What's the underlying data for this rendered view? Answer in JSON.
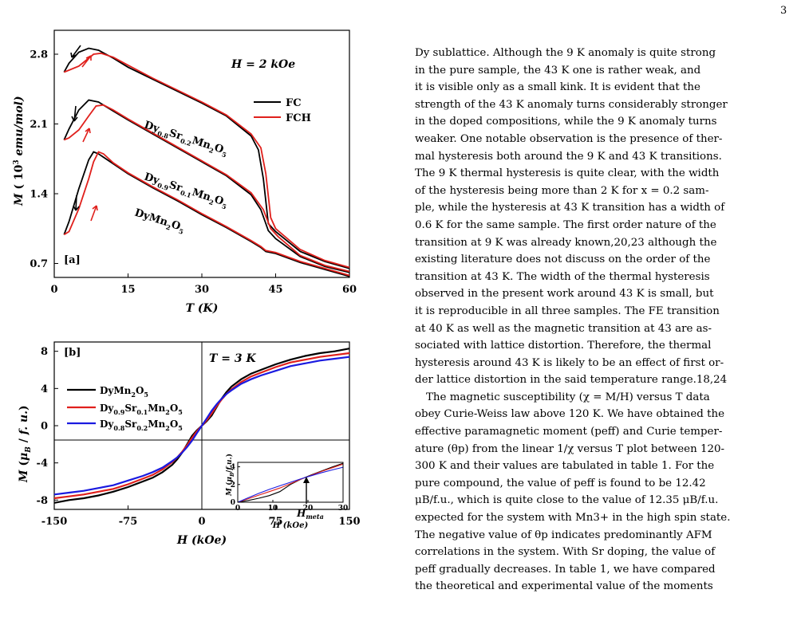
{
  "page": {
    "number": "3"
  },
  "figure": {
    "panel_a": {
      "label": "[a]",
      "field": "H = 2 kOe",
      "xlabel": "T (K)",
      "ylabel": "M ( 10^3 emu/mol)",
      "legend": [
        {
          "name": "FC",
          "color": "#000000"
        },
        {
          "name": "FCH",
          "color": "#e0201c"
        }
      ],
      "sample_labels": [
        "Dy0.8Sr0.2Mn2O5",
        "Dy0.9Sr0.1Mn2O5",
        "DyMn2O5"
      ]
    },
    "panel_b": {
      "label": "[b]",
      "temperature": "T = 3 K",
      "xlabel": "H (kOe)",
      "ylabel": "M (μB / f. u.)",
      "legend": [
        {
          "name": "DyMn2O5",
          "color": "#000000"
        },
        {
          "name": "Dy0.9Sr0.1Mn2O5",
          "color": "#e0201c"
        },
        {
          "name": "Dy0.8Sr0.2Mn2O5",
          "color": "#1a1ae0"
        }
      ],
      "inset": {
        "xlabel": "H (kOe)",
        "ylabel": "M (μB/f.u.)",
        "annotation": "Hmeta"
      }
    }
  },
  "chart_data": [
    {
      "type": "line",
      "title": "",
      "xlabel": "T (K)",
      "ylabel": "M ( 10^3 emu/mol)",
      "xlim": [
        0,
        60
      ],
      "ylim": [
        0.56,
        3.04
      ],
      "xticks": [
        0,
        15,
        30,
        45,
        60
      ],
      "yticks": [
        0.7,
        1.4,
        2.1,
        2.8
      ],
      "series": [
        {
          "name": "FC",
          "sample": "Dy0.8Sr0.2Mn2O5",
          "color": "#000000",
          "x": [
            2,
            3,
            5,
            7,
            9,
            12,
            15,
            20,
            25,
            30,
            35,
            40,
            41.5,
            42.5,
            43.5,
            45,
            50,
            55,
            60
          ],
          "y": [
            2.62,
            2.71,
            2.82,
            2.86,
            2.84,
            2.76,
            2.67,
            2.55,
            2.43,
            2.31,
            2.18,
            1.98,
            1.84,
            1.55,
            1.1,
            1.02,
            0.82,
            0.72,
            0.65
          ]
        },
        {
          "name": "FCH",
          "sample": "Dy0.8Sr0.2Mn2O5",
          "color": "#e0201c",
          "x": [
            2,
            3,
            5,
            6.5,
            8,
            9.5,
            12,
            15,
            20,
            25,
            30,
            35,
            40,
            42,
            43,
            44,
            45,
            50,
            55,
            60
          ],
          "y": [
            2.62,
            2.64,
            2.68,
            2.74,
            2.8,
            2.81,
            2.77,
            2.69,
            2.56,
            2.44,
            2.32,
            2.19,
            2.0,
            1.86,
            1.6,
            1.16,
            1.05,
            0.84,
            0.73,
            0.66
          ]
        },
        {
          "name": "FC",
          "sample": "Dy0.9Sr0.1Mn2O5",
          "color": "#000000",
          "x": [
            2,
            3,
            5,
            7,
            9,
            12,
            15,
            20,
            25,
            30,
            35,
            40,
            42,
            43.5,
            45,
            50,
            55,
            60
          ],
          "y": [
            1.94,
            2.05,
            2.24,
            2.34,
            2.32,
            2.23,
            2.14,
            2.0,
            1.86,
            1.72,
            1.58,
            1.39,
            1.24,
            1.03,
            0.95,
            0.77,
            0.67,
            0.61
          ]
        },
        {
          "name": "FCH",
          "sample": "Dy0.9Sr0.1Mn2O5",
          "color": "#e0201c",
          "x": [
            2,
            3,
            5,
            7,
            8.5,
            10,
            12,
            15,
            20,
            25,
            30,
            35,
            40,
            42.5,
            44,
            45.5,
            50,
            55,
            60
          ],
          "y": [
            1.94,
            1.96,
            2.04,
            2.18,
            2.28,
            2.29,
            2.24,
            2.15,
            2.01,
            1.87,
            1.73,
            1.59,
            1.41,
            1.24,
            1.05,
            0.97,
            0.78,
            0.68,
            0.62
          ]
        },
        {
          "name": "FC",
          "sample": "DyMn2O5",
          "color": "#000000",
          "x": [
            2,
            3,
            5,
            7,
            8,
            9,
            12,
            15,
            20,
            25,
            30,
            35,
            40,
            42,
            43,
            45,
            50,
            55,
            60
          ],
          "y": [
            0.99,
            1.12,
            1.45,
            1.74,
            1.82,
            1.8,
            1.7,
            1.6,
            1.46,
            1.33,
            1.19,
            1.06,
            0.92,
            0.86,
            0.82,
            0.8,
            0.71,
            0.64,
            0.57
          ]
        },
        {
          "name": "FCH",
          "sample": "DyMn2O5",
          "color": "#e0201c",
          "x": [
            2,
            3,
            5,
            7,
            8,
            9,
            10,
            12,
            15,
            20,
            25,
            30,
            35,
            40,
            42,
            43,
            45,
            50,
            55,
            60
          ],
          "y": [
            0.99,
            1.02,
            1.25,
            1.55,
            1.72,
            1.82,
            1.8,
            1.71,
            1.61,
            1.47,
            1.34,
            1.2,
            1.07,
            0.93,
            0.87,
            0.83,
            0.81,
            0.72,
            0.65,
            0.58
          ]
        }
      ]
    },
    {
      "type": "line",
      "title": "",
      "xlabel": "H (kOe)",
      "ylabel": "M (μB / f. u.)",
      "xlim": [
        -150,
        150
      ],
      "ylim": [
        -9,
        9
      ],
      "xticks": [
        -150,
        -75,
        0,
        75,
        150
      ],
      "yticks": [
        -8,
        -4,
        0,
        4,
        8
      ],
      "series": [
        {
          "name": "DyMn2O5",
          "color": "#000000",
          "x": [
            0,
            5,
            10,
            15,
            20,
            25,
            30,
            40,
            50,
            60,
            75,
            90,
            105,
            120,
            135,
            150
          ],
          "y": [
            0,
            0.5,
            1.1,
            2.0,
            2.9,
            3.6,
            4.2,
            5.0,
            5.6,
            6.0,
            6.6,
            7.1,
            7.5,
            7.8,
            8.0,
            8.3
          ]
        },
        {
          "name": "Dy0.9Sr0.1Mn2O5",
          "color": "#e0201c",
          "x": [
            0,
            5,
            10,
            15,
            20,
            25,
            30,
            40,
            50,
            60,
            75,
            90,
            105,
            120,
            135,
            150
          ],
          "y": [
            0,
            0.6,
            1.3,
            2.1,
            2.8,
            3.4,
            3.9,
            4.7,
            5.3,
            5.7,
            6.3,
            6.8,
            7.1,
            7.4,
            7.6,
            7.8
          ]
        },
        {
          "name": "Dy0.8Sr0.2Mn2O5",
          "color": "#1a1ae0",
          "x": [
            0,
            5,
            10,
            15,
            20,
            25,
            30,
            40,
            50,
            60,
            75,
            90,
            105,
            120,
            135,
            150
          ],
          "y": [
            0,
            0.8,
            1.6,
            2.3,
            2.9,
            3.4,
            3.8,
            4.5,
            5.0,
            5.4,
            5.9,
            6.4,
            6.7,
            7.0,
            7.2,
            7.4
          ]
        }
      ]
    },
    {
      "type": "line",
      "title": "",
      "xlabel": "H (kOe)",
      "ylabel": "M (μB/f.u.)",
      "xlim": [
        0,
        30
      ],
      "ylim": [
        0,
        4.5
      ],
      "xticks": [
        0,
        10,
        20,
        30
      ],
      "yticks": [
        0,
        2,
        4
      ],
      "annotation": {
        "text": "Hmeta",
        "x": 20,
        "y": 2.7
      },
      "series": [
        {
          "name": "DyMn2O5",
          "color": "#000000",
          "x": [
            0,
            3,
            6,
            9,
            12,
            15,
            18,
            21,
            24,
            27,
            30
          ],
          "y": [
            0,
            0.2,
            0.45,
            0.75,
            1.2,
            2.0,
            2.6,
            3.1,
            3.55,
            4.0,
            4.4
          ]
        },
        {
          "name": "Dy0.9Sr0.1Mn2O5",
          "color": "#e0201c",
          "x": [
            0,
            3,
            6,
            9,
            12,
            15,
            18,
            21,
            24,
            27,
            30
          ],
          "y": [
            0,
            0.4,
            0.8,
            1.2,
            1.6,
            2.1,
            2.6,
            3.05,
            3.5,
            3.9,
            4.3
          ]
        },
        {
          "name": "Dy0.8Sr0.2Mn2O5",
          "color": "#1a1ae0",
          "x": [
            0,
            3,
            6,
            9,
            12,
            15,
            18,
            21,
            24,
            27,
            30
          ],
          "y": [
            0,
            0.5,
            1.0,
            1.45,
            1.85,
            2.25,
            2.65,
            3.0,
            3.35,
            3.65,
            3.95
          ]
        }
      ]
    }
  ],
  "text": {
    "lines": [
      "Dy sublattice. Although the 9 K anomaly is quite strong",
      "in the pure sample, the 43 K one is rather weak, and",
      "it is visible only as a small kink. It is evident that the",
      "strength of the 43 K anomaly turns considerably stronger",
      "in the doped compositions, while the 9 K anomaly turns",
      "weaker. One notable observation is the presence of ther-",
      "mal hysteresis both around the 9 K and 43 K transitions.",
      "The 9 K thermal hysteresis is quite clear, with the width",
      "of the hysteresis being more than 2 K for x = 0.2 sam-",
      "ple, while the hysteresis at 43 K transition has a width of",
      "0.6 K for the same sample. The first order nature of the",
      "transition at 9 K was already known,20,23 although the",
      "existing literature does not discuss on the order of the",
      "transition at 43 K. The width of the thermal hysteresis",
      "observed in the present work around 43 K is small, but",
      "it is reproducible in all three samples. The FE transition",
      "at 40 K as well as the magnetic transition at 43 are as-",
      "sociated with lattice distortion. Therefore, the thermal",
      "hysteresis around 43 K is likely to be an effect of first or-",
      "der lattice distortion in the said temperature range.18,24",
      "The magnetic susceptibility (χ = M/H) versus T data",
      "obey Curie-Weiss law above 120 K. We have obtained the",
      "effective paramagnetic moment (peff) and Curie temper-",
      "ature (θp) from the linear 1/χ versus T plot between 120-",
      "300 K and their values are tabulated in table 1. For the",
      "pure compound, the value of peff is found to be 12.42",
      "μB/f.u., which is quite close to the value of 12.35 μB/f.u.",
      "expected for the system with Mn3+ in the high spin state.",
      "The negative value of θp indicates predominantly AFM",
      "correlations in the system. With Sr doping, the value of",
      "peff gradually decreases. In table 1, we have compared",
      "the theoretical and experimental value of the moments"
    ]
  }
}
